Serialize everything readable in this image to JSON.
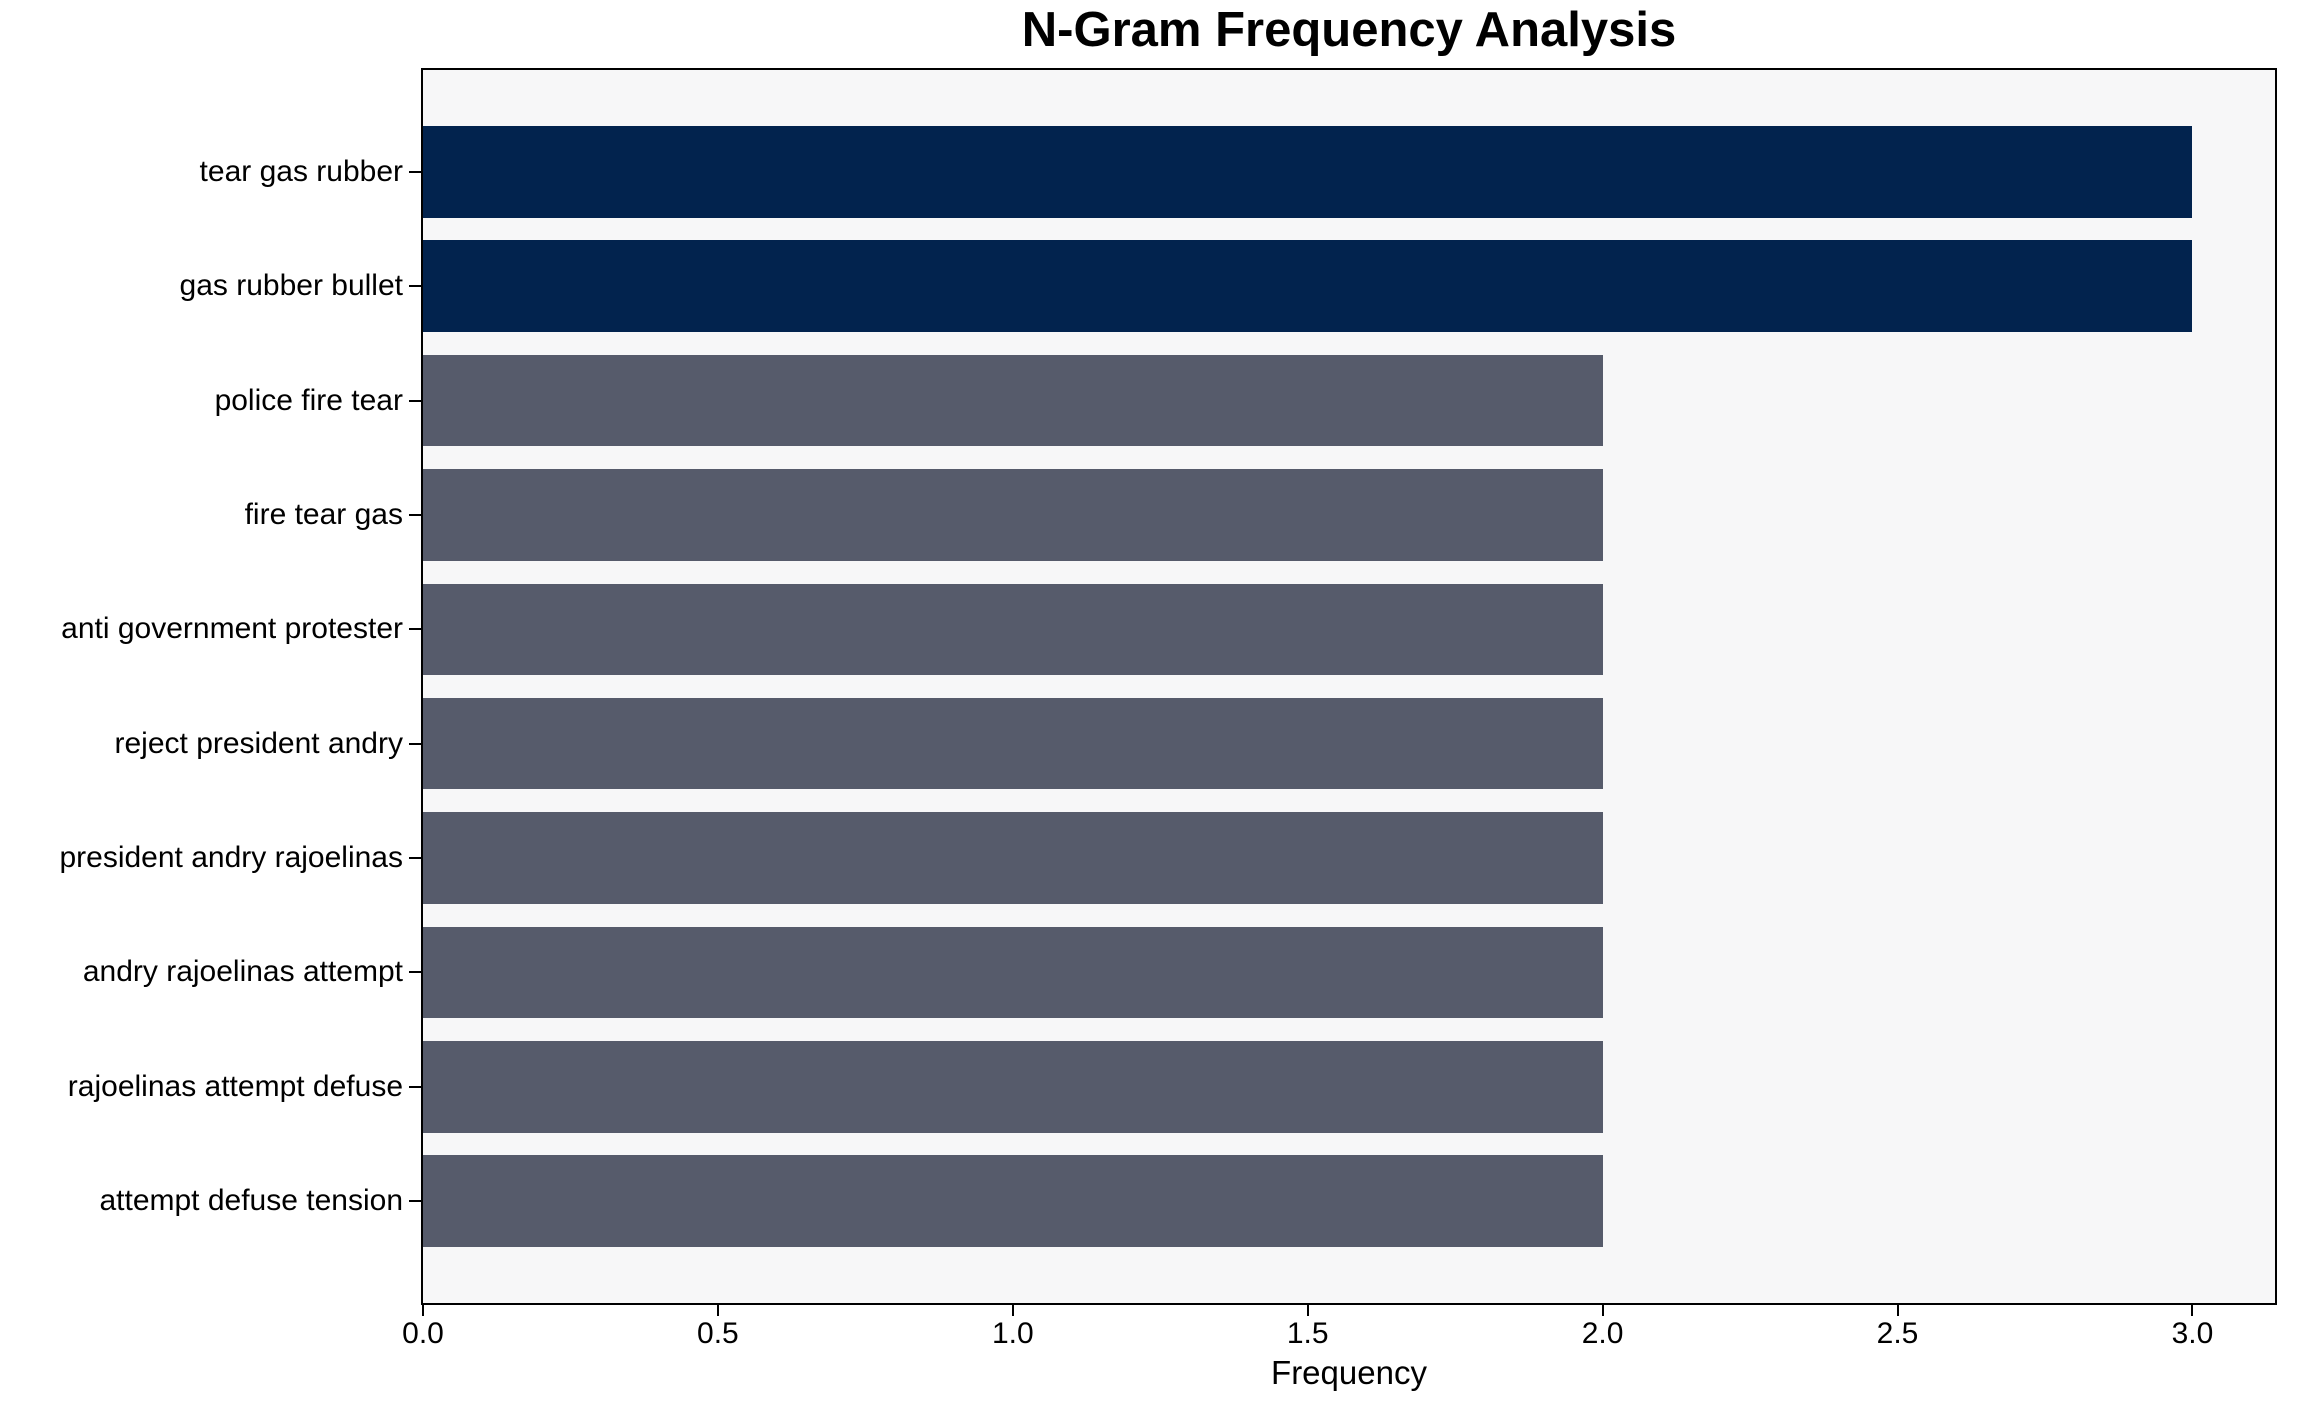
{
  "chart_data": {
    "type": "bar",
    "orientation": "horizontal",
    "title": "N-Gram Frequency Analysis",
    "xlabel": "Frequency",
    "ylabel": "",
    "categories": [
      "tear gas rubber",
      "gas rubber bullet",
      "police fire tear",
      "fire tear gas",
      "anti government protester",
      "reject president andry",
      "president andry rajoelinas",
      "andry rajoelinas attempt",
      "rajoelinas attempt defuse",
      "attempt defuse tension"
    ],
    "values": [
      3,
      3,
      2,
      2,
      2,
      2,
      2,
      2,
      2,
      2
    ],
    "bar_colors": [
      "#02234e",
      "#02234e",
      "#565b6b",
      "#565b6b",
      "#565b6b",
      "#565b6b",
      "#565b6b",
      "#565b6b",
      "#565b6b",
      "#565b6b"
    ],
    "xlim": [
      0,
      3.14
    ],
    "x_ticks": [
      0.0,
      0.5,
      1.0,
      1.5,
      2.0,
      2.5,
      3.0
    ],
    "x_tick_labels": [
      "0.0",
      "0.5",
      "1.0",
      "1.5",
      "2.0",
      "2.5",
      "3.0"
    ],
    "grid": false,
    "legend": "none",
    "colors": {
      "highlight_bar": "#02234e",
      "default_bar": "#565b6b",
      "plot_background": "#f7f7f8",
      "figure_background": "#ffffff",
      "frame": "#000000",
      "text": "#000000"
    }
  }
}
